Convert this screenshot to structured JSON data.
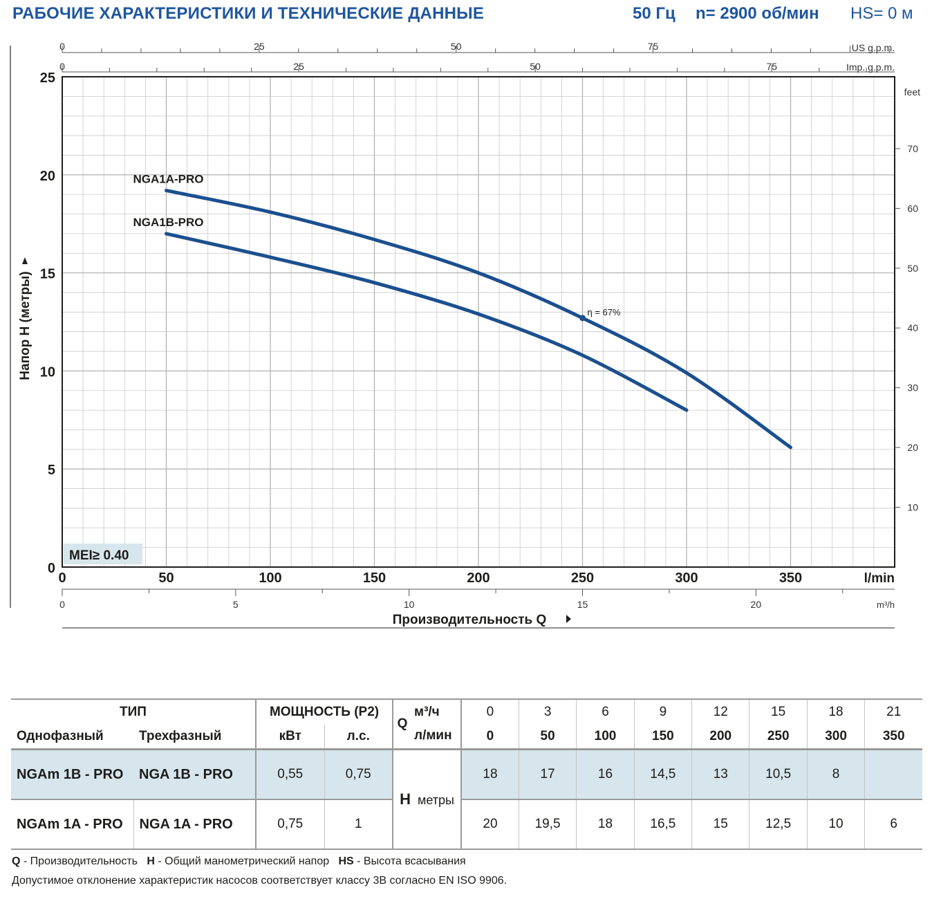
{
  "header": {
    "title": "РАБОЧИЕ ХАРАКТЕРИСТИКИ И ТЕХНИЧЕСКИЕ ДАННЫЕ",
    "frequency": "50 Гц",
    "speed": "n= 2900 об/мин",
    "suction": "HS= 0 м"
  },
  "chart_data": {
    "type": "line",
    "xlabel": "Производительность Q",
    "ylabel": "Напор H (метры)",
    "x_unit": "l/min",
    "xlim": [
      0,
      400
    ],
    "ylim": [
      0,
      25
    ],
    "x_ticks": [
      0,
      50,
      100,
      150,
      200,
      250,
      300,
      350
    ],
    "y_ticks": [
      0,
      5,
      10,
      15,
      20,
      25
    ],
    "grid": true,
    "series": [
      {
        "name": "NGA1A-PRO",
        "x": [
          50,
          100,
          150,
          200,
          250,
          300,
          350
        ],
        "y": [
          19.2,
          18.1,
          16.7,
          15,
          12.7,
          9.9,
          6.1
        ]
      },
      {
        "name": "NGA1B-PRO",
        "x": [
          50,
          100,
          150,
          200,
          250,
          300
        ],
        "y": [
          17,
          15.8,
          14.5,
          12.9,
          10.8,
          8
        ]
      }
    ],
    "efficiency_point": {
      "label": "η = 67%",
      "x": 250,
      "y": 12.7
    },
    "badge": "MEI≥ 0.40",
    "us_gpm": {
      "label": "US g.p.m.",
      "ticks": [
        0,
        25,
        50,
        75
      ]
    },
    "imp_gpm": {
      "label": "Imp. g.p.m.",
      "ticks": [
        0,
        25,
        50,
        75
      ]
    },
    "m3h": {
      "label": "m³/h",
      "ticks": [
        0,
        5,
        10,
        15,
        20
      ]
    },
    "feet": {
      "label": "feet",
      "ticks": [
        10,
        20,
        30,
        40,
        50,
        60,
        70
      ]
    }
  },
  "table": {
    "type_header": "ТИП",
    "power_header": "МОЩНОСТЬ (P2)",
    "single_phase": "Однофазный",
    "three_phase": "Трехфазный",
    "kw": "кВт",
    "hp": "л.с.",
    "q_letter": "Q",
    "q_unit_m3": "м³/ч",
    "q_unit_lmin": "л/мин",
    "q_m3": [
      "0",
      "3",
      "6",
      "9",
      "12",
      "15",
      "18",
      "21"
    ],
    "q_lmin": [
      "0",
      "50",
      "100",
      "150",
      "200",
      "250",
      "300",
      "350"
    ],
    "h_letter": "H",
    "h_unit": "метры",
    "rows": [
      {
        "single": "NGAm 1B - PRO",
        "three": "NGA 1B - PRO",
        "kw": "0,55",
        "hp": "0,75",
        "h": [
          "18",
          "17",
          "16",
          "14,5",
          "13",
          "10,5",
          "8",
          ""
        ]
      },
      {
        "single": "NGAm 1A - PRO",
        "three": "NGA 1A - PRO",
        "kw": "0,75",
        "hp": "1",
        "h": [
          "20",
          "19,5",
          "18",
          "16,5",
          "15",
          "12,5",
          "10",
          "6"
        ]
      }
    ]
  },
  "footer": {
    "q_key": "Q",
    "q_text": "- Производительность",
    "h_key": "H",
    "h_text": "- Общий манометрический напор",
    "hs_key": "HS",
    "hs_text": "- Высота всасывания",
    "note": "Допустимое отклонение характеристик насосов соответствует классу 3B согласно EN ISO 9906."
  },
  "colors": {
    "title": "#1e56a0",
    "curve": "#1b4f8f",
    "grid": "#c9c9c9",
    "shade": "#d7e6ec",
    "badge": "#d7e6ec"
  }
}
